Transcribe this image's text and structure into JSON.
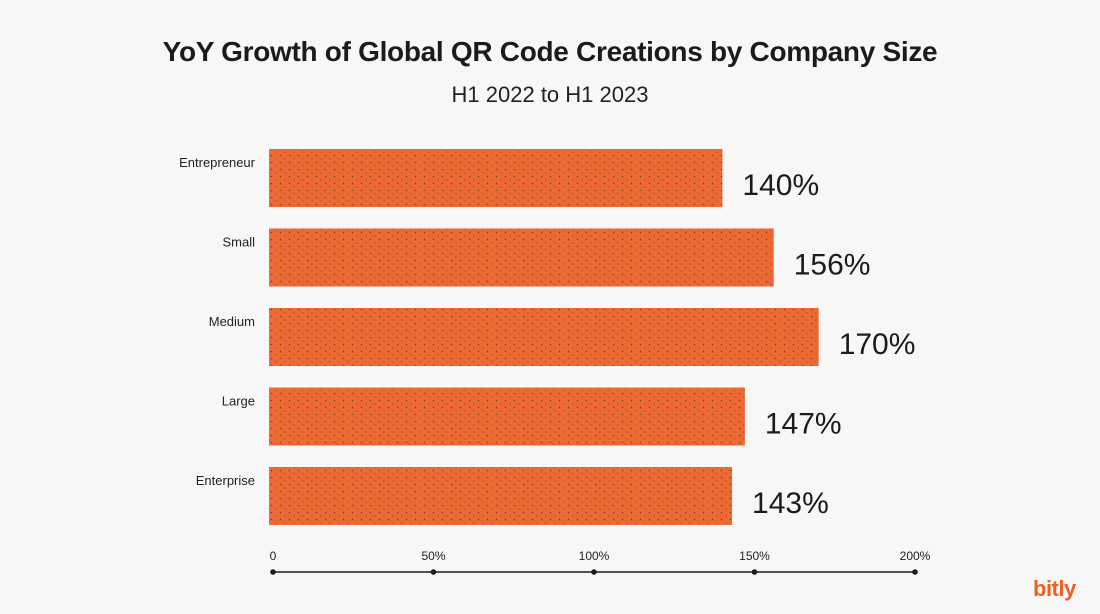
{
  "chart_data": {
    "type": "bar",
    "orientation": "horizontal",
    "title": "YoY Growth of Global QR Code Creations by Company Size",
    "subtitle": "H1 2022 to H1 2023",
    "categories": [
      "Entrepreneur",
      "Small",
      "Medium",
      "Large",
      "Enterprise"
    ],
    "values": [
      140,
      156,
      170,
      147,
      143
    ],
    "value_labels": [
      "140%",
      "156%",
      "170%",
      "147%",
      "143%"
    ],
    "xlim": [
      0,
      200
    ],
    "xticks": [
      0,
      50,
      100,
      150,
      200
    ],
    "xtick_labels": [
      "0",
      "50%",
      "100%",
      "150%",
      "200%"
    ],
    "grid": false,
    "bar_color": "#ee6a35",
    "texture_color": "#1c1c1c"
  },
  "brand": {
    "logo_text": "bitly",
    "color": "#ee6123"
  }
}
